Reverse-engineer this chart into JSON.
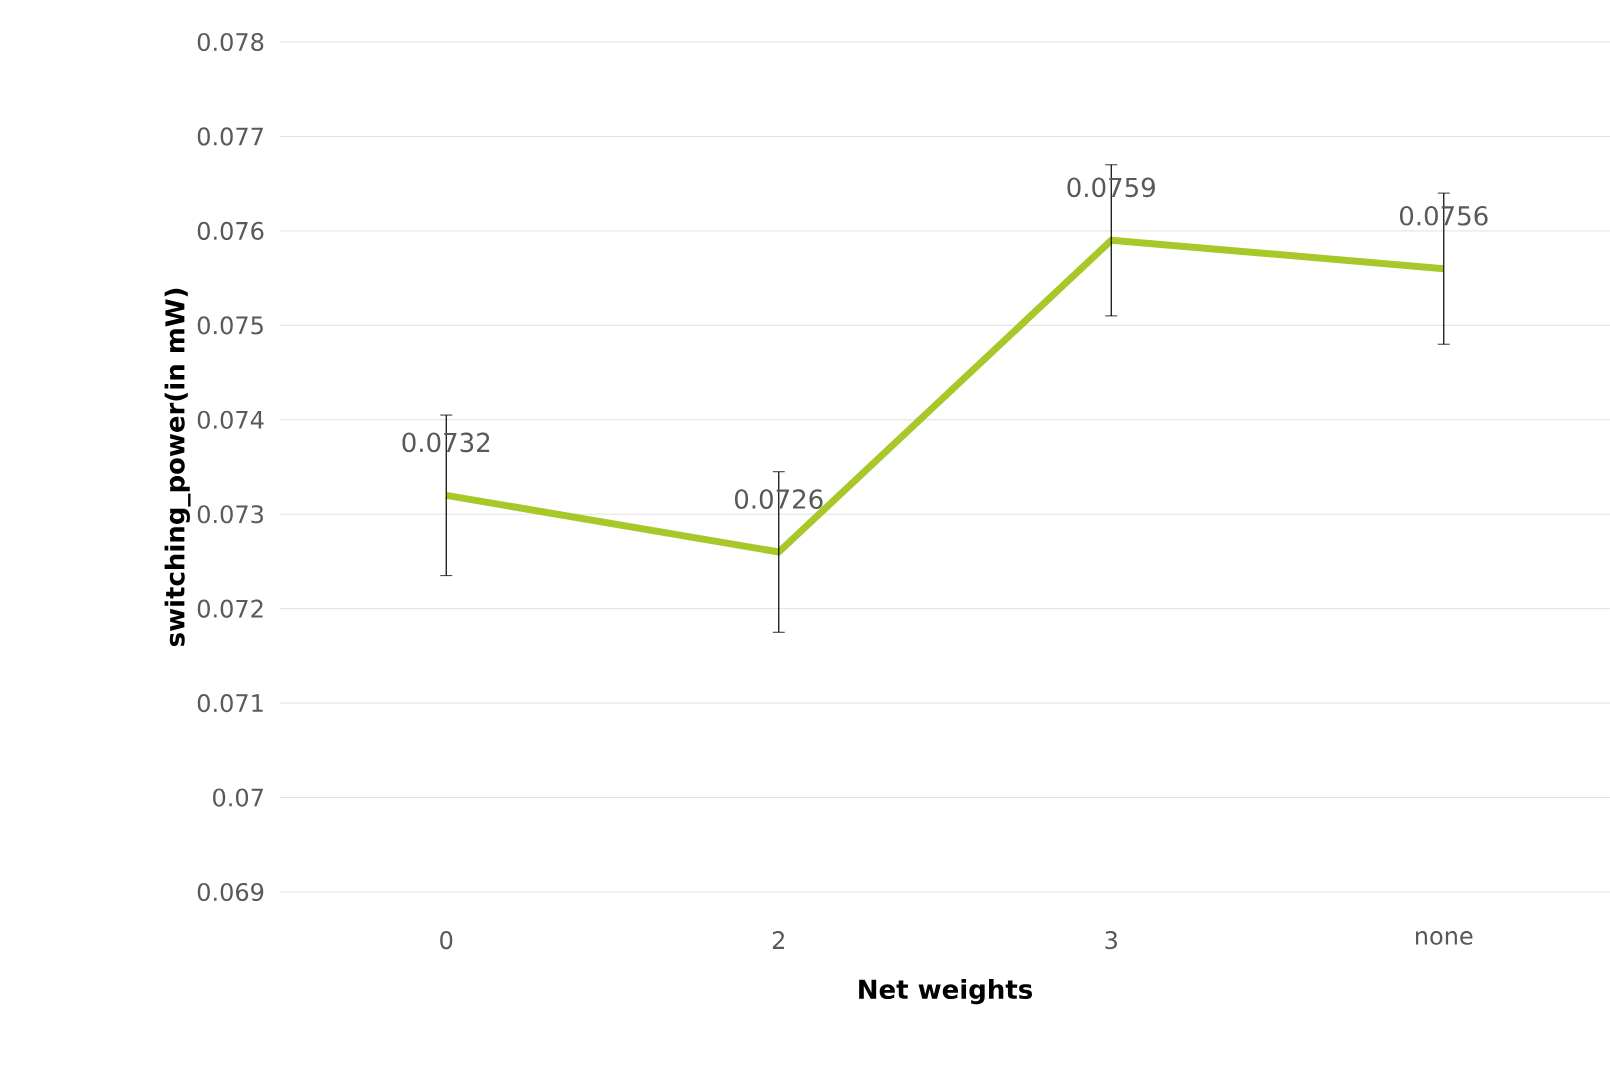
{
  "chart_data": {
    "type": "line",
    "xlabel": "Net weights",
    "ylabel": "switching_power(in  mW)",
    "categories": [
      "0",
      "2",
      "3",
      "none"
    ],
    "values": [
      0.0732,
      0.0726,
      0.0759,
      0.0756
    ],
    "errors": [
      0.00085,
      0.00085,
      0.0008,
      0.0008
    ],
    "color": "#a8c82a",
    "data_labels": true,
    "grid": "y",
    "marker": "none",
    "line_style": "solid",
    "ylim": [
      0.069,
      0.078
    ],
    "yticks": [
      0.069,
      0.07,
      0.071,
      0.072,
      0.073,
      0.074,
      0.075,
      0.076,
      0.077,
      0.078
    ]
  }
}
